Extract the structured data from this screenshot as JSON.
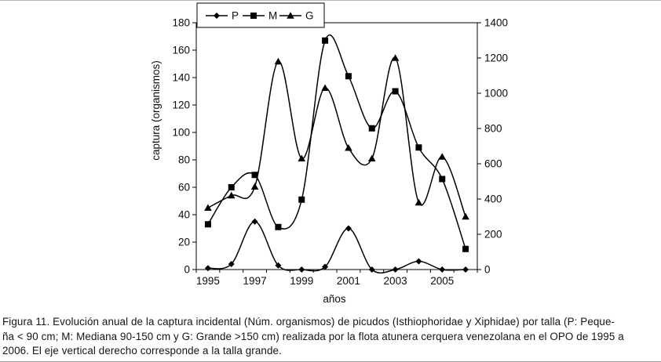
{
  "figure": {
    "caption_lines": [
      "Figura 11. Evolución anual de la captura incidental (Núm. organismos) de picudos (Isthiophoridae y Xiphidae) por talla (P: Peque-",
      "ña < 90 cm; M: Mediana 90-150 cm y G: Grande >150 cm) realizada por la flota atunera cerquera venezolana en el OPO de 1995 a",
      "2006. El eje vertical derecho corresponde a la talla grande."
    ]
  },
  "chart_data": {
    "type": "line",
    "title": "",
    "xlabel": "años",
    "ylabel": "captura (organismos)",
    "x": [
      1995,
      1996,
      1997,
      1998,
      1999,
      2000,
      2001,
      2002,
      2003,
      2004,
      2005,
      2006
    ],
    "x_label_interval": 2,
    "left_axis": {
      "min": 0,
      "max": 180,
      "step": 20
    },
    "right_axis": {
      "min": 0,
      "max": 1400,
      "step": 200
    },
    "legend_position": "top",
    "grid": false,
    "line_color": "#000000",
    "smoothed_lines": true,
    "series": [
      {
        "name": "P",
        "marker": "diamond",
        "axis": "left",
        "values": [
          1,
          4,
          35,
          3,
          0,
          2,
          30,
          0,
          0,
          6,
          0,
          0
        ]
      },
      {
        "name": "M",
        "marker": "square",
        "axis": "left",
        "values": [
          33,
          60,
          69,
          31,
          51,
          167,
          141,
          103,
          130,
          89,
          66,
          15
        ]
      },
      {
        "name": "G",
        "marker": "triangle",
        "axis": "right",
        "values": [
          350,
          420,
          470,
          1180,
          630,
          1030,
          690,
          630,
          1200,
          380,
          640,
          300
        ]
      }
    ]
  }
}
